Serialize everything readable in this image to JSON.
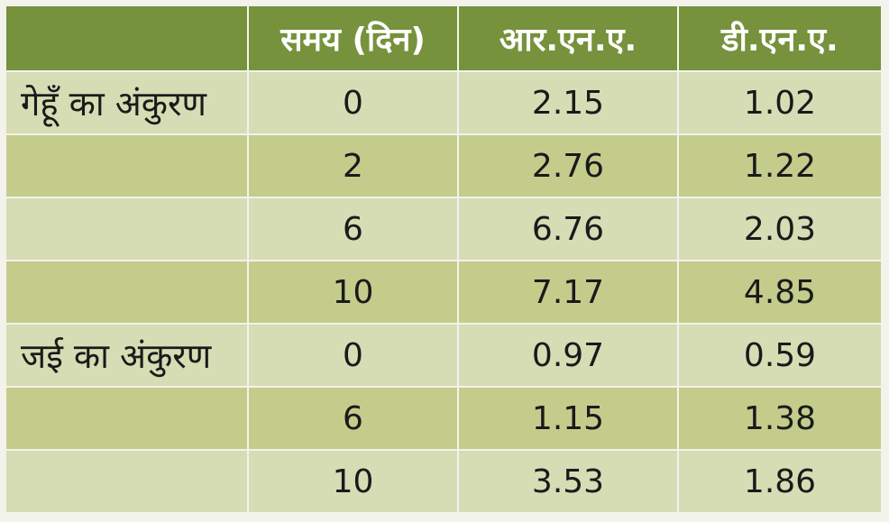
{
  "table": {
    "headers": [
      "",
      "समय (दिन)",
      "आर.एन.ए.",
      "डी.एन.ए."
    ],
    "rows": [
      {
        "label": "गेहूँ का अंकुरण",
        "time": "0",
        "rna": "2.15",
        "dna": "1.02"
      },
      {
        "label": "",
        "time": "2",
        "rna": "2.76",
        "dna": "1.22"
      },
      {
        "label": "",
        "time": "6",
        "rna": "6.76",
        "dna": "2.03"
      },
      {
        "label": "",
        "time": "10",
        "rna": "7.17",
        "dna": "4.85"
      },
      {
        "label": "जई का अंकुरण",
        "time": "0",
        "rna": "0.97",
        "dna": "0.59"
      },
      {
        "label": "",
        "time": "6",
        "rna": "1.15",
        "dna": "1.38"
      },
      {
        "label": "",
        "time": "10",
        "rna": "3.53",
        "dna": "1.86"
      }
    ]
  },
  "colors": {
    "header_bg": "#76923c",
    "row_light": "#d6dcb4",
    "row_dark": "#c4cc8c",
    "border": "#f3f3ec"
  }
}
